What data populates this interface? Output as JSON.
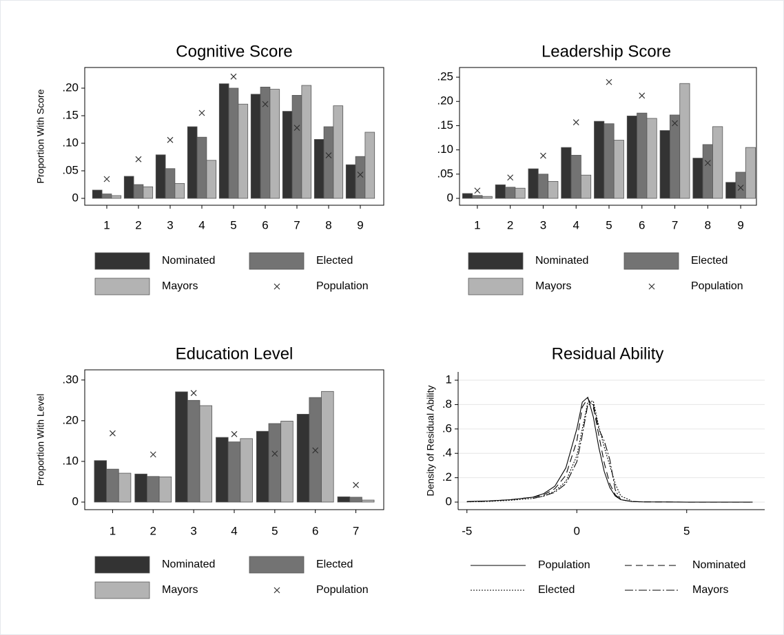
{
  "chart_data": [
    {
      "type": "bar",
      "title": "Cognitive Score",
      "y_label": "Proportion With Score",
      "categories": [
        "1",
        "2",
        "3",
        "4",
        "5",
        "6",
        "7",
        "8",
        "9"
      ],
      "series": [
        {
          "name": "Nominated",
          "color": "#333333",
          "values": [
            0.015,
            0.04,
            0.079,
            0.13,
            0.208,
            0.189,
            0.158,
            0.107,
            0.061
          ]
        },
        {
          "name": "Elected",
          "color": "#737373",
          "values": [
            0.008,
            0.025,
            0.054,
            0.111,
            0.2,
            0.202,
            0.187,
            0.13,
            0.076
          ]
        },
        {
          "name": "Mayors",
          "color": "#b3b3b3",
          "values": [
            0.005,
            0.021,
            0.027,
            0.069,
            0.171,
            0.198,
            0.205,
            0.168,
            0.12
          ]
        },
        {
          "name": "Population",
          "color": "#333333",
          "marker": "x",
          "values": [
            0.035,
            0.071,
            0.106,
            0.155,
            0.221,
            0.171,
            0.128,
            0.078,
            0.043
          ]
        }
      ],
      "ylim": [
        -0.0125,
        0.2375
      ],
      "yticks": [
        0,
        {
          "value": 0.05,
          "label": ".05"
        },
        {
          "value": 0.1,
          "label": ".10"
        },
        {
          "value": 0.15,
          "label": ".15"
        },
        {
          "value": 0.2,
          "label": ".20"
        }
      ]
    },
    {
      "type": "bar",
      "title": "Leadership Score",
      "categories": [
        "1",
        "2",
        "3",
        "4",
        "5",
        "6",
        "7",
        "8",
        "9"
      ],
      "series": [
        {
          "name": "Nominated",
          "color": "#333333",
          "values": [
            0.01,
            0.028,
            0.061,
            0.105,
            0.159,
            0.17,
            0.14,
            0.083,
            0.033
          ]
        },
        {
          "name": "Elected",
          "color": "#737373",
          "values": [
            0.006,
            0.023,
            0.05,
            0.089,
            0.154,
            0.176,
            0.172,
            0.111,
            0.054
          ]
        },
        {
          "name": "Mayors",
          "color": "#b3b3b3",
          "values": [
            0.004,
            0.021,
            0.035,
            0.048,
            0.12,
            0.165,
            0.237,
            0.148,
            0.105
          ]
        },
        {
          "name": "Population",
          "color": "#333333",
          "marker": "x",
          "values": [
            0.016,
            0.043,
            0.088,
            0.157,
            0.24,
            0.212,
            0.155,
            0.073,
            0.022
          ]
        }
      ],
      "ylim": [
        -0.0142,
        0.27
      ],
      "yticks": [
        0,
        {
          "value": 0.05,
          "label": ".05"
        },
        {
          "value": 0.1,
          "label": ".10"
        },
        {
          "value": 0.15,
          "label": ".15"
        },
        {
          "value": 0.2,
          "label": ".20"
        },
        {
          "value": 0.25,
          "label": ".25"
        }
      ]
    },
    {
      "type": "bar",
      "title": "Education Level",
      "y_label": "Proportion With Level",
      "categories": [
        "1",
        "2",
        "3",
        "4",
        "5",
        "6",
        "7"
      ],
      "series": [
        {
          "name": "Nominated",
          "color": "#333333",
          "values": [
            0.102,
            0.069,
            0.271,
            0.159,
            0.174,
            0.216,
            0.013
          ]
        },
        {
          "name": "Elected",
          "color": "#737373",
          "values": [
            0.081,
            0.063,
            0.25,
            0.148,
            0.193,
            0.257,
            0.012
          ]
        },
        {
          "name": "Mayors",
          "color": "#b3b3b3",
          "values": [
            0.071,
            0.062,
            0.237,
            0.156,
            0.199,
            0.272,
            0.005
          ]
        },
        {
          "name": "Population",
          "color": "#333333",
          "marker": "x",
          "values": [
            0.169,
            0.117,
            0.268,
            0.167,
            0.119,
            0.127,
            0.042
          ]
        }
      ],
      "ylim": [
        -0.0186,
        0.325
      ],
      "yticks": [
        0,
        {
          "value": 0.1,
          "label": ".10"
        },
        {
          "value": 0.2,
          "label": ".20"
        },
        {
          "value": 0.3,
          "label": ".30"
        }
      ]
    },
    {
      "type": "line",
      "title": "Residual Ability",
      "y_label": "Density of Residual Ability",
      "x": [
        -5,
        -4,
        -3,
        -2,
        -1.5,
        -1,
        -0.5,
        0,
        0.25,
        0.5,
        0.75,
        1,
        1.25,
        1.5,
        1.75,
        2,
        2.5,
        3,
        4,
        5,
        6,
        7,
        8
      ],
      "series": [
        {
          "name": "Population",
          "color": "#000000",
          "dash": "solid",
          "values": [
            0.005,
            0.01,
            0.02,
            0.04,
            0.07,
            0.13,
            0.28,
            0.6,
            0.82,
            0.86,
            0.7,
            0.45,
            0.25,
            0.12,
            0.05,
            0.02,
            0.005,
            0.002,
            0.001,
            0,
            0,
            0,
            0
          ]
        },
        {
          "name": "Nominated",
          "color": "#000000",
          "dash": "dashed",
          "values": [
            0.003,
            0.008,
            0.02,
            0.04,
            0.06,
            0.11,
            0.22,
            0.5,
            0.78,
            0.85,
            0.78,
            0.55,
            0.32,
            0.15,
            0.06,
            0.02,
            0.005,
            0.002,
            0.001,
            0,
            0,
            0,
            0
          ]
        },
        {
          "name": "Elected",
          "color": "#000000",
          "dash": "dotted",
          "values": [
            0.002,
            0.006,
            0.015,
            0.03,
            0.05,
            0.09,
            0.17,
            0.38,
            0.6,
            0.82,
            0.83,
            0.62,
            0.45,
            0.3,
            0.15,
            0.05,
            0.01,
            null,
            null,
            null,
            null,
            null,
            null
          ]
        },
        {
          "name": "Mayors",
          "color": "#000000",
          "dash": "dashdot",
          "values": [
            null,
            null,
            null,
            0.03,
            0.05,
            0.08,
            0.15,
            0.33,
            0.55,
            0.8,
            0.8,
            0.6,
            0.5,
            0.35,
            0.1,
            0.02,
            null,
            null,
            null,
            null,
            null,
            null,
            null
          ]
        }
      ],
      "xlim": [
        -5.4,
        8.55
      ],
      "ylim": [
        -0.062,
        1.068
      ],
      "xticks": [
        -5,
        0,
        5
      ],
      "yticks": [
        0,
        {
          "value": 0.2,
          "label": ".2"
        },
        {
          "value": 0.4,
          "label": ".4"
        },
        {
          "value": 0.6,
          "label": ".6"
        },
        {
          "value": 0.8,
          "label": ".8"
        },
        1
      ],
      "grid": true
    }
  ]
}
